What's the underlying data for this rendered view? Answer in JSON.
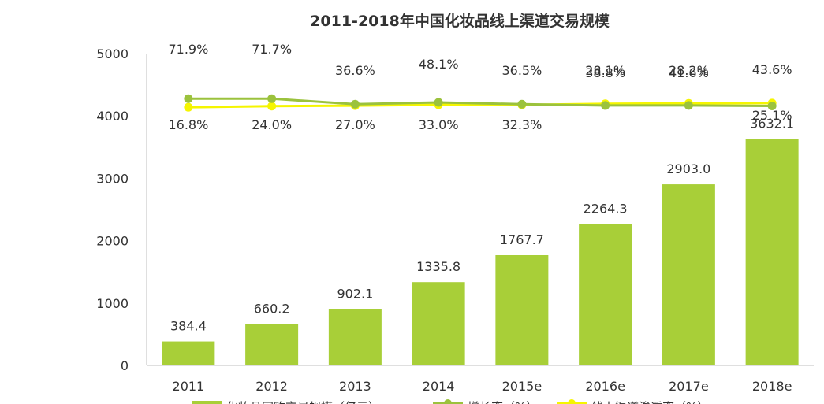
{
  "chart_data": {
    "type": "bar",
    "title": "2011-2018年中国化妆品线上渠道交易规模",
    "categories": [
      "2011",
      "2012",
      "2013",
      "2014",
      "2015e",
      "2016e",
      "2017e",
      "2018e"
    ],
    "ylim": [
      0,
      5000
    ],
    "yticks": [
      0,
      1000,
      2000,
      3000,
      4000,
      5000
    ],
    "series": [
      {
        "name": "化妆品网购交易规模（亿元）",
        "kind": "bar",
        "color": "#a8cf38",
        "values": [
          384.4,
          660.2,
          902.1,
          1335.8,
          1767.7,
          2264.3,
          2903.0,
          3632.1
        ],
        "labels": [
          "384.4",
          "660.2",
          "902.1",
          "1335.8",
          "1767.7",
          "2264.3",
          "2903.0",
          "3632.1"
        ]
      },
      {
        "name": "增长率（%）",
        "kind": "line",
        "color": "#9bc23d",
        "values": [
          71.9,
          71.7,
          36.6,
          48.1,
          36.5,
          28.1,
          28.2,
          25.1
        ],
        "labels": [
          "71.9%",
          "71.7%",
          "36.6%",
          "48.1%",
          "36.5%",
          "28.1%",
          "28.2%",
          "25.1%"
        ]
      },
      {
        "name": "线上渠道渗透率（%）",
        "kind": "line",
        "color": "#f5f500",
        "values": [
          16.8,
          24.0,
          27.0,
          33.0,
          32.3,
          38.8,
          41.6,
          43.6
        ],
        "labels": [
          "16.8%",
          "24.0%",
          "27.0%",
          "33.0%",
          "32.3%",
          "38.8%",
          "41.6%",
          "43.6%"
        ]
      }
    ],
    "grid": false,
    "legend_position": "bottom"
  }
}
